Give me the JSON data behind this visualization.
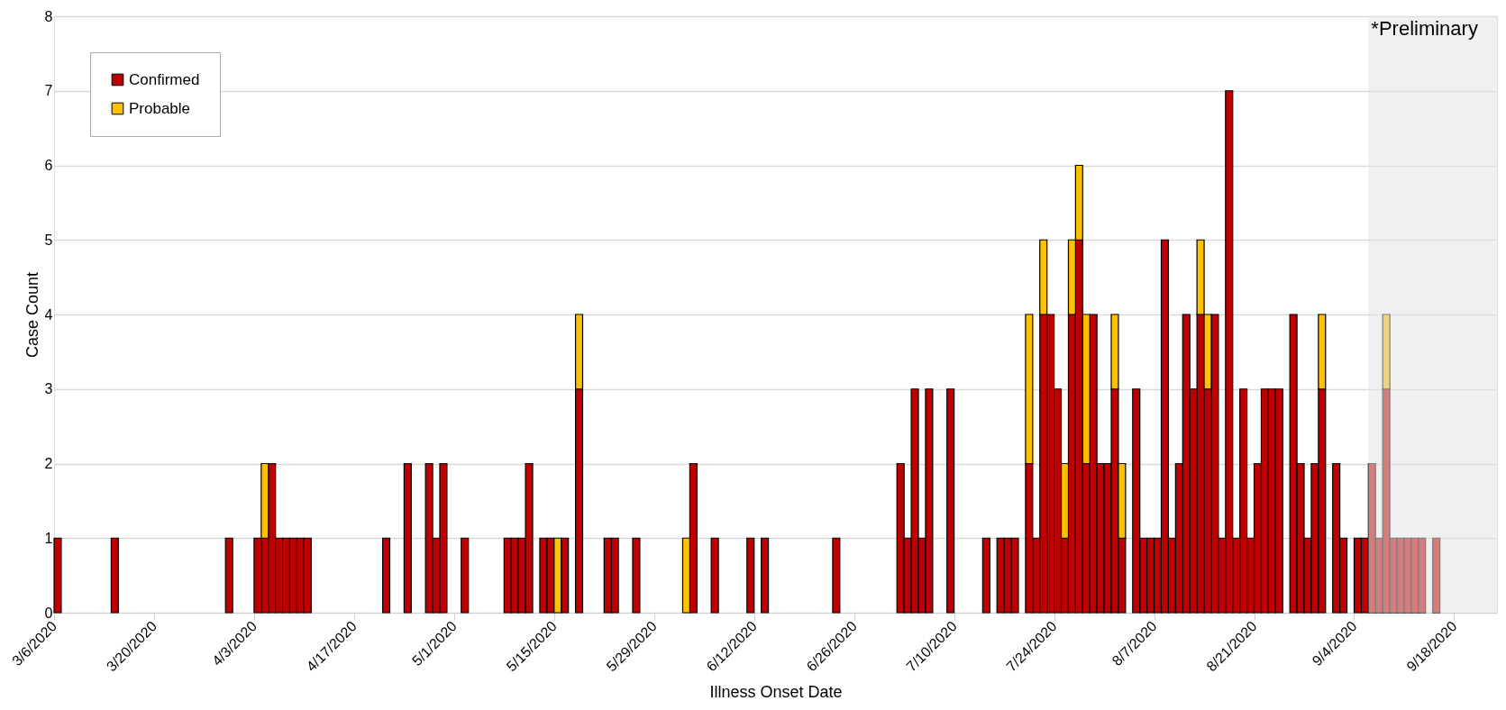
{
  "chart_data": {
    "type": "bar",
    "stacked": true,
    "xlabel": "Illness Onset Date",
    "ylabel": "Case Count",
    "x": [
      "2020-03-06",
      "2020-03-14",
      "2020-03-30",
      "2020-04-03",
      "2020-04-04",
      "2020-04-05",
      "2020-04-06",
      "2020-04-07",
      "2020-04-08",
      "2020-04-09",
      "2020-04-10",
      "2020-04-21",
      "2020-04-24",
      "2020-04-27",
      "2020-04-28",
      "2020-04-29",
      "2020-05-02",
      "2020-05-08",
      "2020-05-09",
      "2020-05-10",
      "2020-05-11",
      "2020-05-13",
      "2020-05-14",
      "2020-05-15",
      "2020-05-16",
      "2020-05-18",
      "2020-05-22",
      "2020-05-23",
      "2020-05-26",
      "2020-06-02",
      "2020-06-03",
      "2020-06-06",
      "2020-06-11",
      "2020-06-13",
      "2020-06-23",
      "2020-07-02",
      "2020-07-03",
      "2020-07-04",
      "2020-07-05",
      "2020-07-06",
      "2020-07-09",
      "2020-07-14",
      "2020-07-16",
      "2020-07-17",
      "2020-07-18",
      "2020-07-20",
      "2020-07-21",
      "2020-07-22",
      "2020-07-23",
      "2020-07-24",
      "2020-07-25",
      "2020-07-26",
      "2020-07-27",
      "2020-07-28",
      "2020-07-29",
      "2020-07-30",
      "2020-07-31",
      "2020-08-01",
      "2020-08-02",
      "2020-08-04",
      "2020-08-05",
      "2020-08-06",
      "2020-08-07",
      "2020-08-08",
      "2020-08-09",
      "2020-08-10",
      "2020-08-11",
      "2020-08-12",
      "2020-08-13",
      "2020-08-14",
      "2020-08-15",
      "2020-08-16",
      "2020-08-17",
      "2020-08-18",
      "2020-08-19",
      "2020-08-20",
      "2020-08-21",
      "2020-08-22",
      "2020-08-23",
      "2020-08-24",
      "2020-08-26",
      "2020-08-27",
      "2020-08-28",
      "2020-08-29",
      "2020-08-30",
      "2020-09-01",
      "2020-09-02",
      "2020-09-04",
      "2020-09-05",
      "2020-09-06",
      "2020-09-07",
      "2020-09-08",
      "2020-09-09",
      "2020-09-10",
      "2020-09-11",
      "2020-09-12",
      "2020-09-13",
      "2020-09-15"
    ],
    "series": [
      {
        "name": "Confirmed",
        "color": "#c00000",
        "values": [
          1,
          1,
          1,
          1,
          1,
          2,
          1,
          1,
          1,
          1,
          1,
          1,
          2,
          2,
          1,
          2,
          1,
          1,
          1,
          1,
          2,
          1,
          1,
          null,
          1,
          3,
          1,
          1,
          1,
          null,
          2,
          1,
          1,
          1,
          1,
          2,
          1,
          3,
          1,
          3,
          3,
          1,
          1,
          1,
          1,
          2,
          1,
          4,
          4,
          3,
          1,
          4,
          5,
          2,
          4,
          2,
          2,
          3,
          1,
          3,
          1,
          1,
          1,
          5,
          1,
          2,
          4,
          3,
          4,
          3,
          4,
          1,
          7,
          1,
          3,
          1,
          2,
          3,
          3,
          3,
          4,
          2,
          1,
          2,
          3,
          2,
          1,
          1,
          1,
          2,
          1,
          3,
          1,
          1,
          1,
          1,
          1,
          1
        ]
      },
      {
        "name": "Probable",
        "color": "#ffc000",
        "values": [
          null,
          null,
          null,
          null,
          1,
          null,
          null,
          null,
          null,
          null,
          null,
          null,
          null,
          null,
          null,
          null,
          null,
          null,
          null,
          null,
          null,
          null,
          null,
          1,
          null,
          1,
          null,
          null,
          null,
          1,
          null,
          null,
          null,
          null,
          null,
          null,
          null,
          null,
          null,
          null,
          null,
          null,
          null,
          null,
          null,
          2,
          null,
          1,
          null,
          null,
          1,
          1,
          1,
          2,
          null,
          null,
          null,
          1,
          1,
          null,
          null,
          null,
          null,
          null,
          null,
          null,
          null,
          null,
          1,
          1,
          null,
          null,
          null,
          null,
          null,
          null,
          null,
          null,
          null,
          null,
          null,
          null,
          null,
          null,
          1,
          null,
          null,
          null,
          null,
          null,
          null,
          1,
          null,
          null,
          null,
          null,
          null,
          null
        ]
      }
    ],
    "xlim": [
      "2020-03-06",
      "2020-09-24"
    ],
    "xticks": [
      {
        "value": "2020-03-06",
        "label": "3/6/2020"
      },
      {
        "value": "2020-03-20",
        "label": "3/20/2020"
      },
      {
        "value": "2020-04-03",
        "label": "4/3/2020"
      },
      {
        "value": "2020-04-17",
        "label": "4/17/2020"
      },
      {
        "value": "2020-05-01",
        "label": "5/1/2020"
      },
      {
        "value": "2020-05-15",
        "label": "5/15/2020"
      },
      {
        "value": "2020-05-29",
        "label": "5/29/2020"
      },
      {
        "value": "2020-06-12",
        "label": "6/12/2020"
      },
      {
        "value": "2020-06-26",
        "label": "6/26/2020"
      },
      {
        "value": "2020-07-10",
        "label": "7/10/2020"
      },
      {
        "value": "2020-07-24",
        "label": "7/24/2020"
      },
      {
        "value": "2020-08-07",
        "label": "8/7/2020"
      },
      {
        "value": "2020-08-21",
        "label": "8/21/2020"
      },
      {
        "value": "2020-09-04",
        "label": "9/4/2020"
      },
      {
        "value": "2020-09-18",
        "label": "9/18/2020"
      }
    ],
    "ylim": [
      0,
      8
    ],
    "yticks": [
      0,
      1,
      2,
      3,
      4,
      5,
      6,
      7,
      8
    ],
    "grid": "y",
    "legend": "top left",
    "bands": [
      {
        "axis": "x",
        "from": "2020-09-06",
        "to": "2020-09-24",
        "label": "*Preliminary",
        "color": "#e3e3e3"
      }
    ]
  }
}
